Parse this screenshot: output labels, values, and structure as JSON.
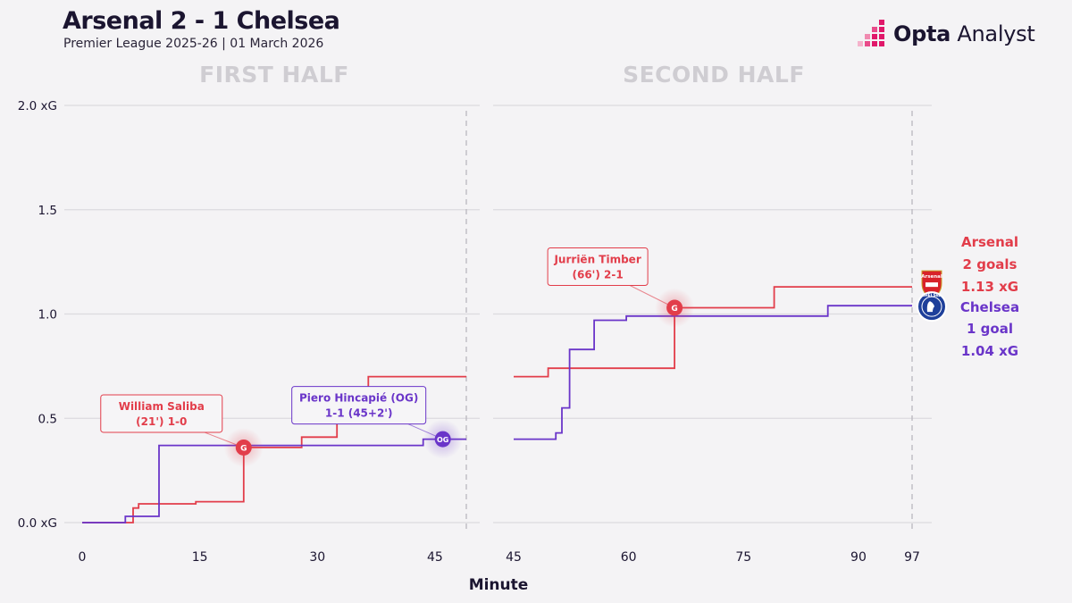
{
  "header": {
    "title": "Arsenal 2 - 1 Chelsea",
    "subtitle": "Premier League 2025-26 | 01 March 2026",
    "brand_bold": "Opta",
    "brand_light": "Analyst"
  },
  "colors": {
    "arsenal": "#e23d4a",
    "chelsea": "#6a35c9",
    "grid": "#dcdadf",
    "half_title": "#cfcdd2",
    "text": "#1b1530"
  },
  "chart_data": {
    "type": "line",
    "step": true,
    "title": "",
    "xlabel": "Minute",
    "ylabel": "",
    "ylim": [
      0,
      2.0
    ],
    "y_ticks": [
      {
        "value": 0,
        "label": "0.0 xG"
      },
      {
        "value": 0.5,
        "label": "0.5"
      },
      {
        "value": 1.0,
        "label": "1.0"
      },
      {
        "value": 1.5,
        "label": "1.5"
      },
      {
        "value": 2.0,
        "label": "2.0 xG"
      }
    ],
    "grid": true,
    "panels": [
      {
        "name": "FIRST HALF",
        "xlim": [
          0,
          49
        ],
        "x_ticks": [
          0,
          15,
          30,
          45
        ],
        "end_marker": 49
      },
      {
        "name": "SECOND HALF",
        "xlim": [
          45,
          97
        ],
        "x_ticks": [
          45,
          60,
          75,
          90,
          97
        ],
        "end_marker": 97
      }
    ],
    "series": [
      {
        "name": "Arsenal",
        "color": "#e23d4a",
        "first_half": [
          [
            0,
            0
          ],
          [
            6.5,
            0
          ],
          [
            6.5,
            0.07
          ],
          [
            7.2,
            0.07
          ],
          [
            7.2,
            0.09
          ],
          [
            14.5,
            0.09
          ],
          [
            14.5,
            0.1
          ],
          [
            20.6,
            0.1
          ],
          [
            20.6,
            0.36
          ],
          [
            28,
            0.36
          ],
          [
            28,
            0.41
          ],
          [
            32.5,
            0.41
          ],
          [
            32.5,
            0.5
          ],
          [
            36.5,
            0.5
          ],
          [
            36.5,
            0.7
          ],
          [
            49,
            0.7
          ]
        ],
        "second_half": [
          [
            45,
            0.7
          ],
          [
            49.5,
            0.7
          ],
          [
            49.5,
            0.74
          ],
          [
            66,
            0.74
          ],
          [
            66,
            1.03
          ],
          [
            79,
            1.03
          ],
          [
            79,
            1.13
          ],
          [
            97,
            1.13
          ]
        ]
      },
      {
        "name": "Chelsea",
        "color": "#6a35c9",
        "first_half": [
          [
            0,
            0
          ],
          [
            5.5,
            0
          ],
          [
            5.5,
            0.03
          ],
          [
            9.8,
            0.03
          ],
          [
            9.8,
            0.37
          ],
          [
            43.5,
            0.37
          ],
          [
            43.5,
            0.4
          ],
          [
            49,
            0.4
          ]
        ],
        "second_half": [
          [
            45,
            0.4
          ],
          [
            50.5,
            0.4
          ],
          [
            50.5,
            0.43
          ],
          [
            51.3,
            0.43
          ],
          [
            51.3,
            0.55
          ],
          [
            52.3,
            0.55
          ],
          [
            52.3,
            0.83
          ],
          [
            55.5,
            0.83
          ],
          [
            55.5,
            0.97
          ],
          [
            59.7,
            0.97
          ],
          [
            59.7,
            0.99
          ],
          [
            86,
            0.99
          ],
          [
            86,
            1.04
          ],
          [
            97,
            1.04
          ]
        ]
      }
    ],
    "goals": [
      {
        "team": "Arsenal",
        "half": 1,
        "minute": 20.6,
        "xg": 0.36,
        "marker": "G",
        "label_line1": "William Saliba",
        "label_line2": "(21') 1-0",
        "color": "#e23d4a"
      },
      {
        "team": "Chelsea",
        "half": 1,
        "minute": 46,
        "xg": 0.4,
        "marker": "OG",
        "label_line1": "Piero Hincapié (OG)",
        "label_line2": "1-1 (45+2')",
        "color": "#6a35c9"
      },
      {
        "team": "Arsenal",
        "half": 2,
        "minute": 66,
        "xg": 1.03,
        "marker": "G",
        "label_line1": "Jurriën Timber",
        "label_line2": "(66') 2-1",
        "color": "#e23d4a"
      }
    ],
    "summary": [
      {
        "team": "Arsenal",
        "badge": "Arsenal",
        "goals": "2 goals",
        "xg": "1.13 xG",
        "color": "#e23d4a"
      },
      {
        "team": "Chelsea",
        "badge": "CHELSEA",
        "goals": "1 goal",
        "xg": "1.04 xG",
        "color": "#6a35c9"
      }
    ]
  }
}
